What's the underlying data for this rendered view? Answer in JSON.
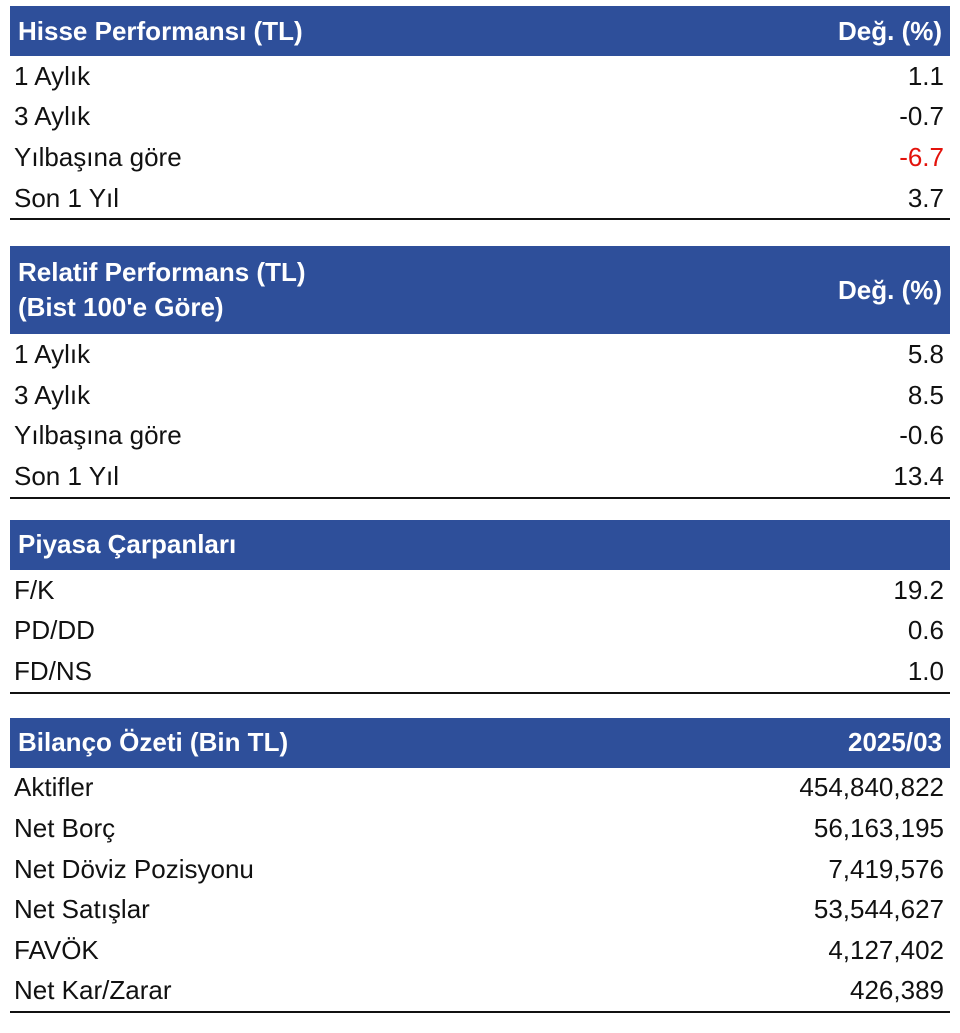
{
  "sections": [
    {
      "title_lines": [
        "Hisse Performansı (TL)"
      ],
      "col_header": "Değ. (%)",
      "rows": [
        {
          "label": "1 Aylık",
          "value": "1.1"
        },
        {
          "label": "3 Aylık",
          "value": "-0.7"
        },
        {
          "label": "Yılbaşına göre",
          "value": "-6.7",
          "value_color": "#e3120b"
        },
        {
          "label": "Son 1 Yıl",
          "value": "3.7"
        }
      ]
    },
    {
      "title_lines": [
        "Relatif Performans (TL)",
        "(Bist 100'e Göre)"
      ],
      "col_header": "Değ. (%)",
      "rows": [
        {
          "label": "1 Aylık",
          "value": "5.8"
        },
        {
          "label": "3 Aylık",
          "value": "8.5"
        },
        {
          "label": "Yılbaşına göre",
          "value": "-0.6"
        },
        {
          "label": "Son 1 Yıl",
          "value": "13.4"
        }
      ]
    },
    {
      "title_lines": [
        "Piyasa Çarpanları"
      ],
      "col_header": "",
      "rows": [
        {
          "label": "F/K",
          "value": "19.2"
        },
        {
          "label": "PD/DD",
          "value": "0.6"
        },
        {
          "label": "FD/NS",
          "value": "1.0"
        }
      ]
    },
    {
      "title_lines": [
        "Bilanço Özeti (Bin TL)"
      ],
      "col_header": "2025/03",
      "rows": [
        {
          "label": "Aktifler",
          "value": "454,840,822"
        },
        {
          "label": "Net Borç",
          "value": "56,163,195"
        },
        {
          "label": "Net Döviz Pozisyonu",
          "value": "7,419,576"
        },
        {
          "label": "Net Satışlar",
          "value": "53,544,627"
        },
        {
          "label": "FAVÖK",
          "value": "4,127,402"
        },
        {
          "label": "Net Kar/Zarar",
          "value": "426,389"
        }
      ]
    }
  ],
  "colors": {
    "header_bg": "#2e4f9a",
    "header_text": "#ffffff",
    "negative_highlight": "#e3120b"
  }
}
